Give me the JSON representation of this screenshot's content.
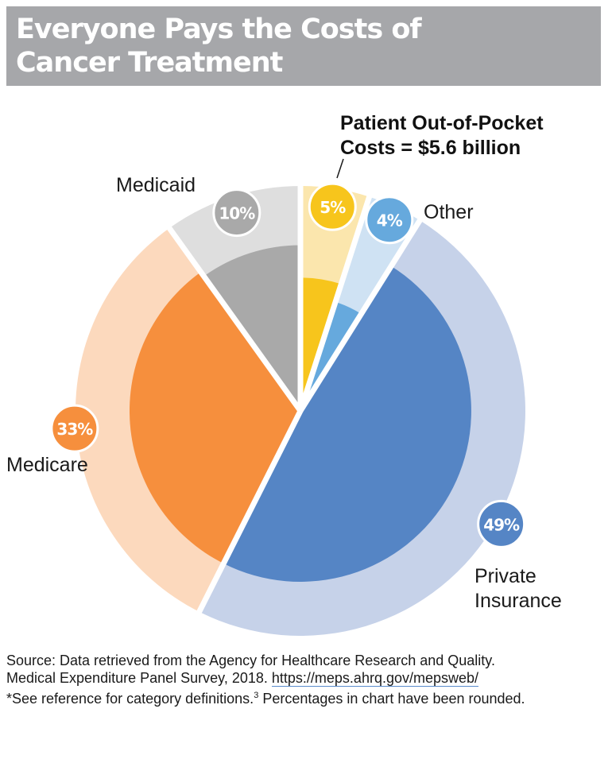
{
  "header": {
    "title": "Everyone Pays the Costs of Cancer Treatment"
  },
  "callout": {
    "line1": "Patient Out-of-Pocket",
    "line2": "Costs = $5.6 billion"
  },
  "chart_data": {
    "type": "pie",
    "title": "Everyone Pays the Costs of Cancer Treatment",
    "slices": [
      {
        "label": "Patient Out-of-Pocket Costs",
        "value": 5,
        "value_label": "5%",
        "color": "#f7c51c",
        "light_color": "#fbe6ad"
      },
      {
        "label": "Other",
        "value": 4,
        "value_label": "4%",
        "color": "#66a9dd",
        "light_color": "#cfe2f3"
      },
      {
        "label": "Private Insurance",
        "value": 49,
        "value_label": "49%",
        "color": "#5585c5",
        "light_color": "#c6d2e9"
      },
      {
        "label": "Medicare",
        "value": 33,
        "value_label": "33%",
        "color": "#f68f3d",
        "light_color": "#fcd9bd"
      },
      {
        "label": "Medicaid",
        "value": 10,
        "value_label": "10%",
        "color": "#a9a9a9",
        "light_color": "#dedede"
      }
    ],
    "annotation": "Patient Out-of-Pocket Costs = $5.6 billion"
  },
  "labels": {
    "medicaid": "Medicaid",
    "other": "Other",
    "medicare": "Medicare",
    "private_line1": "Private",
    "private_line2": "Insurance"
  },
  "source": {
    "line1": "Source: Data retrieved from the Agency for Healthcare Research and Quality.",
    "line2_text": "Medical Expenditure Panel Survey, 2018.",
    "url": "https://meps.ahrq.gov/mepsweb/",
    "line3_a": "*See reference for category definitions.",
    "sup": "3",
    "line3_b": " Percentages in chart have been rounded."
  }
}
